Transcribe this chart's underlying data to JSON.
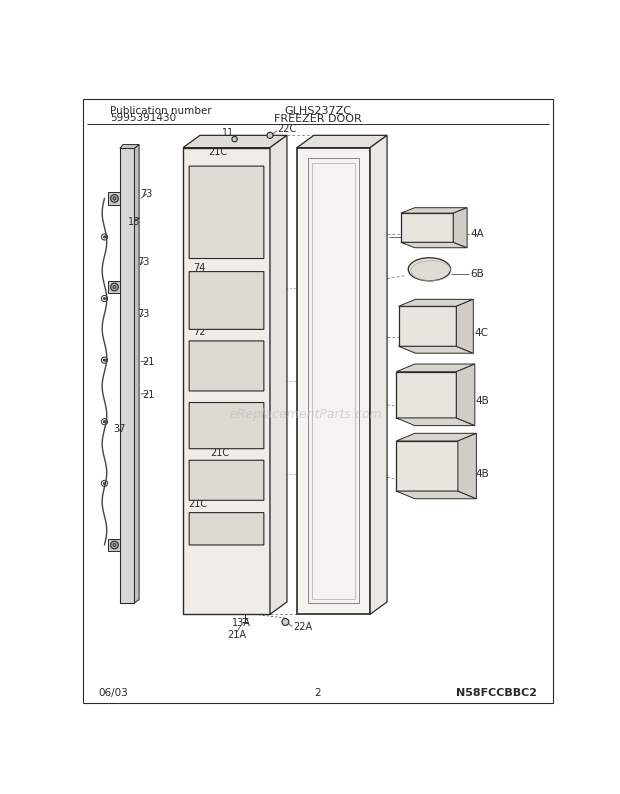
{
  "title": "FREEZER DOOR",
  "model": "GLHS237ZC",
  "pub_label": "Publication number",
  "pub_number": "5995391430",
  "bottom_left": "06/03",
  "bottom_center": "2",
  "bottom_right": "N58FCCBBC2",
  "bg_color": "#ffffff",
  "lc": "#2a2a2a",
  "watermark": "eReplacementParts.com"
}
